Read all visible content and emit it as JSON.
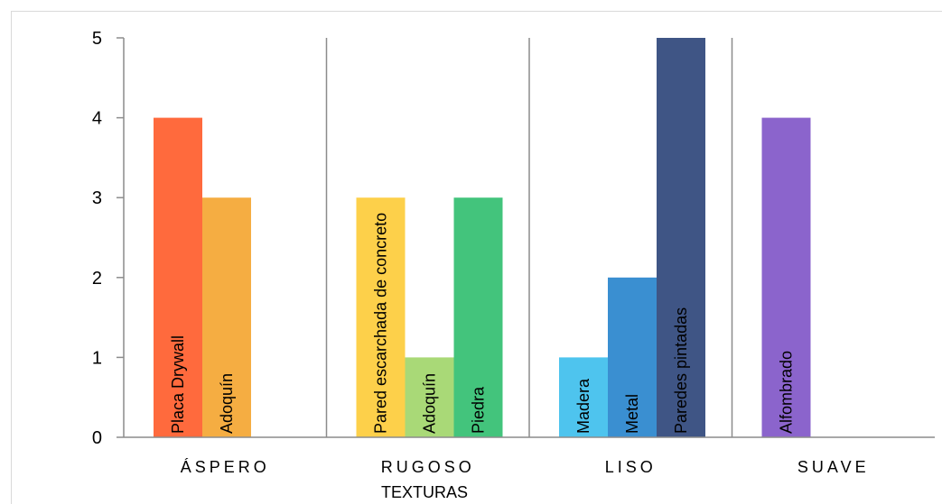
{
  "chart_data": {
    "type": "bar",
    "xlabel": "TEXTURAS",
    "ylabel": "",
    "ylim": [
      0,
      5
    ],
    "yticks": [
      0,
      1,
      2,
      3,
      4,
      5
    ],
    "grid": false,
    "groups": [
      {
        "name": "ÁSPERO",
        "bars": [
          {
            "label": "Placa Drywall",
            "value": 4,
            "color": "#ff6a3d"
          },
          {
            "label": "Adoquín",
            "value": 3,
            "color": "#f5ad42"
          }
        ]
      },
      {
        "name": "RUGOSO",
        "bars": [
          {
            "label": "Pared escarchada de concreto",
            "value": 3,
            "color": "#fdd04a"
          },
          {
            "label": "Adoquín",
            "value": 1,
            "color": "#a9d977"
          },
          {
            "label": "Piedra",
            "value": 3,
            "color": "#43c47c"
          }
        ]
      },
      {
        "name": "LISO",
        "bars": [
          {
            "label": "Madera",
            "value": 1,
            "color": "#4ec4ee"
          },
          {
            "label": "Metal",
            "value": 2,
            "color": "#3a8fd1"
          },
          {
            "label": "Paredes pintadas",
            "value": 5,
            "color": "#3f5585"
          }
        ]
      },
      {
        "name": "SUAVE",
        "bars": [
          {
            "label": "Alfombrado",
            "value": 4,
            "color": "#8b64cc"
          }
        ]
      }
    ]
  }
}
